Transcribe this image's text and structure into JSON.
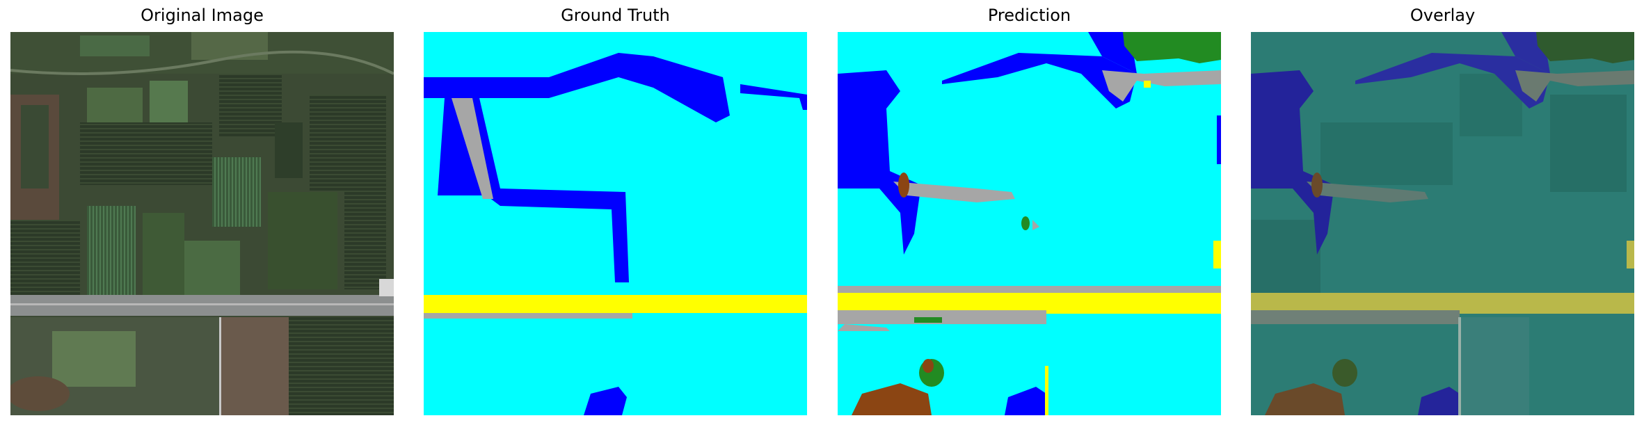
{
  "panels": [
    {
      "title": "Original Image"
    },
    {
      "title": "Ground Truth"
    },
    {
      "title": "Prediction"
    },
    {
      "title": "Overlay"
    }
  ],
  "colors": {
    "water": "#0000ff",
    "background": "#00ffff",
    "road": "#ffff00",
    "built": "#a6a6a6",
    "forest": "#228b22",
    "barren": "#8b4513"
  }
}
